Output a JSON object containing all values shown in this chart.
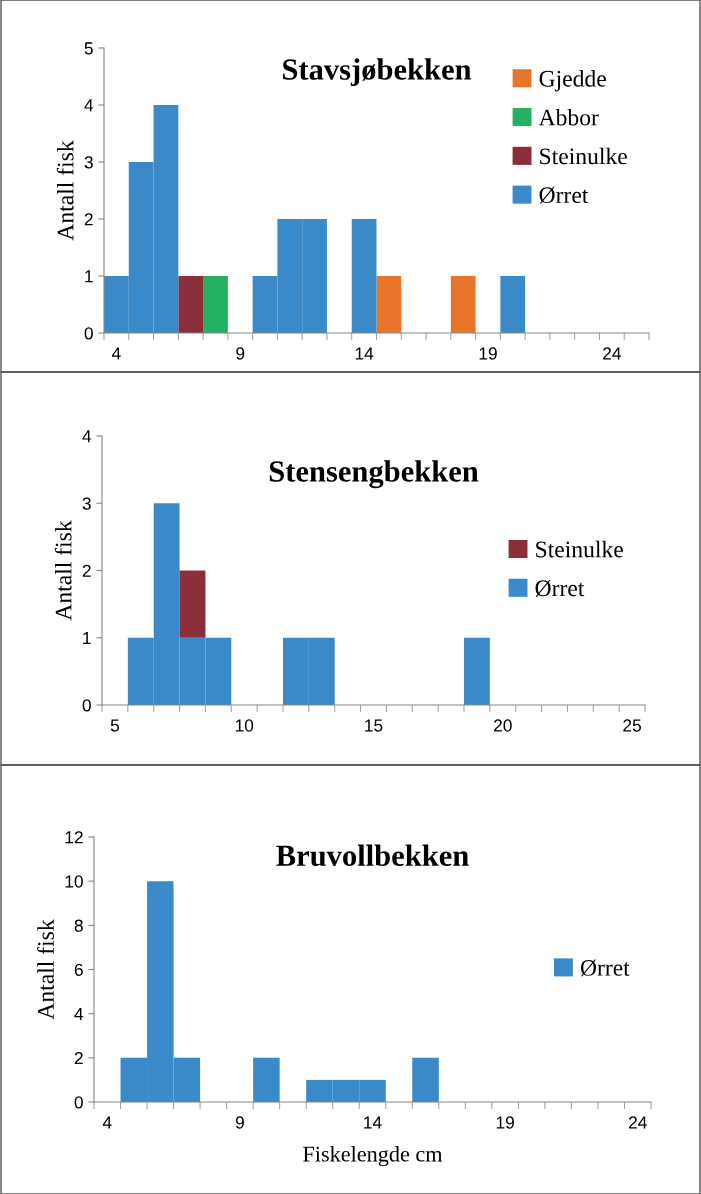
{
  "chart_data": [
    {
      "type": "bar",
      "title": "Stavsjøbekken",
      "ylabel": "Antall fisk",
      "legend": "top right",
      "grid": false,
      "categories": [
        "4",
        null,
        null,
        null,
        null,
        "9",
        null,
        null,
        null,
        null,
        "14",
        null,
        null,
        null,
        null,
        "19",
        null,
        null,
        null,
        null,
        "24",
        null
      ],
      "ylim": [
        0,
        5
      ],
      "yticks": [
        0,
        1,
        2,
        3,
        4,
        5
      ],
      "series": [
        {
          "name": "Gjedde",
          "color": "#e8732a",
          "values": [
            null,
            null,
            null,
            null,
            null,
            null,
            null,
            null,
            null,
            null,
            null,
            1,
            null,
            null,
            1,
            null,
            null,
            null,
            null,
            null,
            null,
            null
          ]
        },
        {
          "name": "Abbor",
          "color": "#23b062",
          "values": [
            null,
            null,
            null,
            null,
            1,
            null,
            null,
            null,
            null,
            null,
            null,
            null,
            null,
            null,
            null,
            null,
            null,
            null,
            null,
            null,
            null,
            null
          ]
        },
        {
          "name": "Steinulke",
          "color": "#8b2e3a",
          "values": [
            null,
            null,
            null,
            1,
            null,
            null,
            null,
            null,
            null,
            null,
            null,
            null,
            null,
            null,
            null,
            null,
            null,
            null,
            null,
            null,
            null,
            null
          ]
        },
        {
          "name": "Ørret",
          "color": "#3a89c9",
          "values": [
            1,
            3,
            4,
            null,
            null,
            null,
            1,
            2,
            2,
            null,
            2,
            null,
            null,
            null,
            null,
            null,
            1,
            null,
            null,
            null,
            null,
            null
          ]
        }
      ]
    },
    {
      "type": "bar",
      "title": "Stensengbekken",
      "ylabel": "Antall fisk",
      "stacked": true,
      "legend": "right",
      "grid": false,
      "categories": [
        "5",
        null,
        null,
        null,
        null,
        "10",
        null,
        null,
        null,
        null,
        "15",
        null,
        null,
        null,
        null,
        "20",
        null,
        null,
        null,
        null,
        "25"
      ],
      "ylim": [
        0,
        4
      ],
      "yticks": [
        0,
        1,
        2,
        3,
        4
      ],
      "series": [
        {
          "name": "Ørret",
          "color": "#3a89c9",
          "values": [
            null,
            1,
            3,
            1,
            1,
            null,
            null,
            1,
            1,
            null,
            null,
            null,
            null,
            null,
            1,
            null,
            null,
            null,
            null,
            null,
            null
          ]
        },
        {
          "name": "Steinulke",
          "color": "#8b2e3a",
          "values": [
            null,
            null,
            null,
            1,
            null,
            null,
            null,
            null,
            null,
            null,
            null,
            null,
            null,
            null,
            null,
            null,
            null,
            null,
            null,
            null,
            null
          ]
        }
      ]
    },
    {
      "type": "bar",
      "title": "Bruvollbekken",
      "ylabel": "Antall fisk",
      "xlabel": "Fiskelengde cm",
      "legend": "right",
      "grid": false,
      "categories": [
        "4",
        null,
        null,
        null,
        null,
        "9",
        null,
        null,
        null,
        null,
        "14",
        null,
        null,
        null,
        null,
        "19",
        null,
        null,
        null,
        null,
        "24"
      ],
      "ylim": [
        0,
        12
      ],
      "yticks": [
        0,
        2,
        4,
        6,
        8,
        10,
        12
      ],
      "series": [
        {
          "name": "Ørret",
          "color": "#3a89c9",
          "values": [
            null,
            2,
            10,
            2,
            null,
            null,
            2,
            null,
            1,
            1,
            1,
            null,
            2,
            null,
            null,
            null,
            null,
            null,
            null,
            null,
            null
          ]
        }
      ]
    }
  ]
}
